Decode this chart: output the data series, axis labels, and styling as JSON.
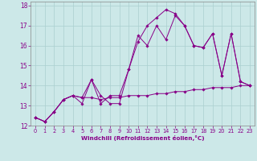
{
  "xlabel": "Windchill (Refroidissement éolien,°C)",
  "xlim": [
    -0.5,
    23.5
  ],
  "ylim": [
    12,
    18.2
  ],
  "yticks": [
    12,
    13,
    14,
    15,
    16,
    17,
    18
  ],
  "xticks": [
    0,
    1,
    2,
    3,
    4,
    5,
    6,
    7,
    8,
    9,
    10,
    11,
    12,
    13,
    14,
    15,
    16,
    17,
    18,
    19,
    20,
    21,
    22,
    23
  ],
  "background_color": "#cce8e8",
  "grid_color": "#aacfcf",
  "line_color": "#880088",
  "series": [
    [
      12.4,
      12.2,
      12.7,
      13.3,
      13.5,
      13.4,
      13.4,
      13.3,
      13.4,
      13.4,
      13.5,
      13.5,
      13.5,
      13.6,
      13.6,
      13.7,
      13.7,
      13.8,
      13.8,
      13.9,
      13.9,
      13.9,
      14.0,
      14.0
    ],
    [
      12.4,
      12.2,
      12.7,
      13.3,
      13.5,
      13.4,
      14.3,
      13.1,
      13.5,
      13.5,
      14.8,
      16.2,
      17.0,
      17.4,
      17.8,
      17.6,
      17.0,
      16.0,
      15.9,
      16.6,
      14.5,
      16.6,
      14.2,
      14.0
    ],
    [
      12.4,
      12.2,
      12.7,
      13.3,
      13.5,
      13.1,
      14.3,
      13.5,
      13.1,
      13.1,
      14.8,
      16.5,
      16.0,
      17.0,
      16.3,
      17.5,
      17.0,
      16.0,
      15.9,
      16.6,
      14.5,
      16.6,
      14.2,
      14.0
    ]
  ],
  "figsize": [
    3.2,
    2.0
  ],
  "dpi": 100
}
